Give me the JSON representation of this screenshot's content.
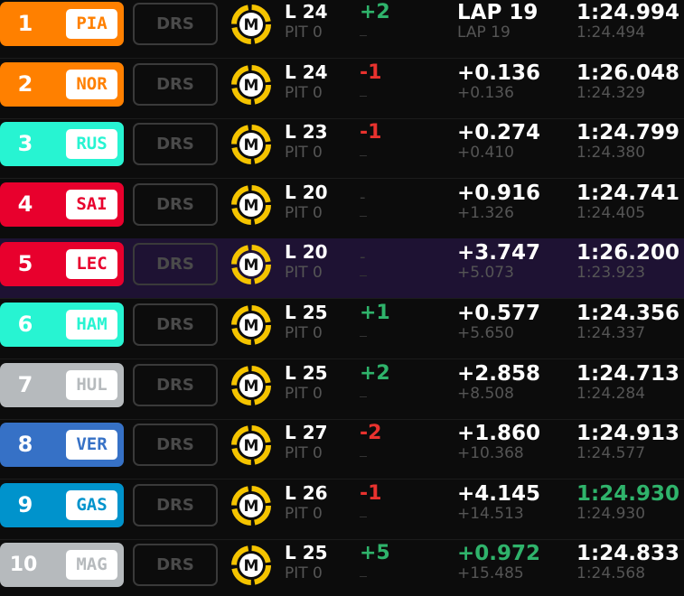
{
  "rows": [
    {
      "position": 1,
      "driver": "PIA",
      "team_color": "#ff8000",
      "drs": "DRS",
      "tyre": "M",
      "lap": "L 24",
      "pit": "PIT 0",
      "change": "+2",
      "gap": "LAP 19",
      "interval": "LAP 19",
      "last_lap": "1:24.994",
      "best_lap": "1:24.494"
    },
    {
      "position": 2,
      "driver": "NOR",
      "team_color": "#ff8000",
      "drs": "DRS",
      "tyre": "M",
      "lap": "L 24",
      "pit": "PIT 0",
      "change": "-1",
      "gap": "+0.136",
      "interval": "+0.136",
      "last_lap": "1:26.048",
      "best_lap": "1:24.329"
    },
    {
      "position": 3,
      "driver": "RUS",
      "team_color": "#27f4d2",
      "drs": "DRS",
      "tyre": "M",
      "lap": "L 23",
      "pit": "PIT 0",
      "change": "-1",
      "gap": "+0.274",
      "interval": "+0.410",
      "last_lap": "1:24.799",
      "best_lap": "1:24.380"
    },
    {
      "position": 4,
      "driver": "SAI",
      "team_color": "#e8002d",
      "drs": "DRS",
      "tyre": "M",
      "lap": "L 20",
      "pit": "PIT 0",
      "change": "-",
      "gap": "+0.916",
      "interval": "+1.326",
      "last_lap": "1:24.741",
      "best_lap": "1:24.405"
    },
    {
      "position": 5,
      "driver": "LEC",
      "team_color": "#e8002d",
      "drs": "DRS",
      "tyre": "M",
      "lap": "L 20",
      "pit": "PIT 0",
      "change": "-",
      "gap": "+3.747",
      "interval": "+5.073",
      "last_lap": "1:26.200",
      "best_lap": "1:23.923",
      "selected": true
    },
    {
      "position": 6,
      "driver": "HAM",
      "team_color": "#27f4d2",
      "drs": "DRS",
      "tyre": "M",
      "lap": "L 25",
      "pit": "PIT 0",
      "change": "+1",
      "gap": "+0.577",
      "interval": "+5.650",
      "last_lap": "1:24.356",
      "best_lap": "1:24.337"
    },
    {
      "position": 7,
      "driver": "HUL",
      "team_color": "#b6babd",
      "drs": "DRS",
      "tyre": "M",
      "lap": "L 25",
      "pit": "PIT 0",
      "change": "+2",
      "gap": "+2.858",
      "interval": "+8.508",
      "last_lap": "1:24.713",
      "best_lap": "1:24.284"
    },
    {
      "position": 8,
      "driver": "VER",
      "team_color": "#3671c6",
      "drs": "DRS",
      "tyre": "M",
      "lap": "L 27",
      "pit": "PIT 0",
      "change": "-2",
      "gap": "+1.860",
      "interval": "+10.368",
      "last_lap": "1:24.913",
      "best_lap": "1:24.577"
    },
    {
      "position": 9,
      "driver": "GAS",
      "team_color": "#0093cc",
      "drs": "DRS",
      "tyre": "M",
      "lap": "L 26",
      "pit": "PIT 0",
      "change": "-1",
      "gap": "+4.145",
      "interval": "+14.513",
      "last_lap": "1:24.930",
      "best_lap": "1:24.930",
      "last_lap_color": "#2fb36b"
    },
    {
      "position": 10,
      "driver": "MAG",
      "team_color": "#b6babd",
      "drs": "DRS",
      "tyre": "M",
      "lap": "L 25",
      "pit": "PIT 0",
      "change": "+5",
      "gap": "+0.972",
      "interval": "+15.485",
      "last_lap": "1:24.833",
      "best_lap": "1:24.568",
      "gap_color": "#2fb36b"
    }
  ]
}
